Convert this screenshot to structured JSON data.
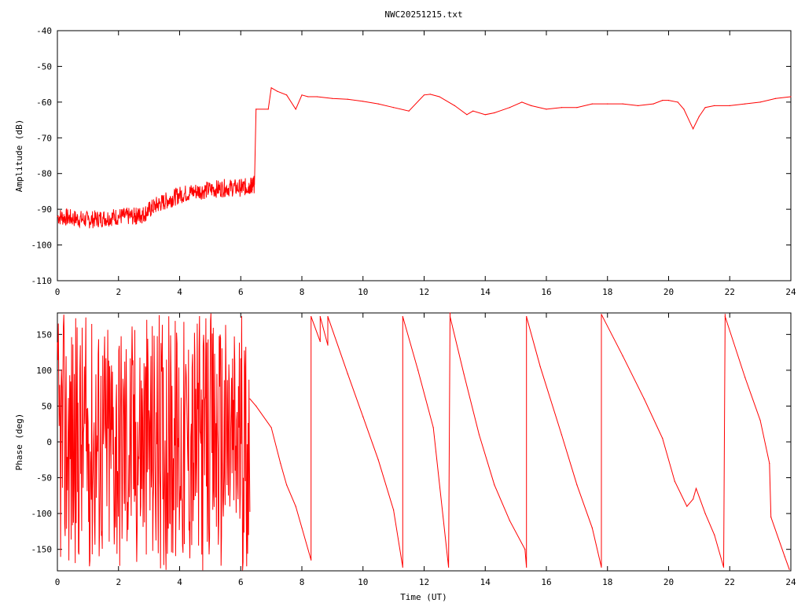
{
  "title": "NWC20251215.txt",
  "chart_data": [
    {
      "type": "line",
      "title": "NWC20251215.txt",
      "xlabel": "",
      "ylabel": "Amplitude (dB)",
      "xlim": [
        0,
        24
      ],
      "ylim": [
        -110,
        -40
      ],
      "x_ticks": [
        "0",
        "2",
        "4",
        "6",
        "8",
        "10",
        "12",
        "14",
        "16",
        "18",
        "20",
        "22",
        "24"
      ],
      "y_ticks": [
        "-40",
        "-50",
        "-60",
        "-70",
        "-80",
        "-90",
        "-100",
        "-110"
      ],
      "color": "#ff0000",
      "series": [
        {
          "x": [
            0,
            0.5,
            1,
            1.5,
            2,
            2.5,
            2.8,
            3.2,
            3.6,
            4,
            4.5,
            5,
            5.5,
            6,
            6.3,
            6.45,
            6.5,
            6.9,
            7.0,
            7.2,
            7.5,
            7.8,
            8.0,
            8.2,
            8.5,
            9,
            9.5,
            10,
            10.5,
            11,
            11.5,
            12,
            12.2,
            12.5,
            13,
            13.4,
            13.6,
            14,
            14.3,
            14.8,
            15.2,
            15.5,
            16,
            16.5,
            17,
            17.5,
            18,
            18.5,
            19,
            19.5,
            19.8,
            20,
            20.3,
            20.5,
            20.8,
            21.0,
            21.2,
            21.5,
            22,
            22.5,
            23,
            23.5,
            24
          ],
          "y": [
            -92,
            -92.5,
            -93,
            -92.5,
            -92,
            -92,
            -91.5,
            -89,
            -87.5,
            -86,
            -85,
            -84.5,
            -84,
            -84,
            -83.5,
            -83,
            -62,
            -62,
            -56,
            -57,
            -58,
            -62,
            -58,
            -58.5,
            -58.5,
            -59,
            -59.2,
            -59.8,
            -60.5,
            -61.5,
            -62.5,
            -58,
            -57.8,
            -58.5,
            -61,
            -63.5,
            -62.5,
            -63.5,
            -63,
            -61.5,
            -60,
            -61,
            -62,
            -61.5,
            -61.5,
            -60.5,
            -60.5,
            -60.5,
            -61,
            -60.5,
            -59.5,
            -59.5,
            -60,
            -62,
            -67.5,
            -64,
            -61.5,
            -61,
            -61,
            -60.5,
            -60,
            -59,
            -58.5
          ]
        }
      ]
    },
    {
      "type": "line",
      "title": "",
      "xlabel": "Time (UT)",
      "ylabel": "Phase (deg)",
      "xlim": [
        0,
        24
      ],
      "ylim": [
        -180,
        180
      ],
      "x_ticks": [
        "0",
        "2",
        "4",
        "6",
        "8",
        "10",
        "12",
        "14",
        "16",
        "18",
        "20",
        "22",
        "24"
      ],
      "y_ticks": [
        "150",
        "100",
        "50",
        "0",
        "-50",
        "-100",
        "-150"
      ],
      "color": "#ff0000",
      "series": [
        {
          "x": [
            6.3,
            6.5,
            7.0,
            7.3,
            7.5,
            7.8,
            8.0,
            8.3,
            8.3,
            8.6,
            8.6,
            8.85,
            8.85,
            9.5,
            10.0,
            10.5,
            11.0,
            11.3,
            11.3,
            11.8,
            12.3,
            12.8,
            12.85,
            12.85,
            13.3,
            13.8,
            14.3,
            14.8,
            15.3,
            15.35,
            15.35,
            15.8,
            16.5,
            17.0,
            17.5,
            17.8,
            17.8,
            18.5,
            19.2,
            19.8,
            20.2,
            20.6,
            20.8,
            20.9,
            21.2,
            21.5,
            21.8,
            21.85,
            21.85,
            22.5,
            23.0,
            23.3,
            23.35,
            23.8,
            23.95
          ],
          "y": [
            60,
            50,
            20,
            -30,
            -60,
            -90,
            -120,
            -165,
            175,
            140,
            175,
            135,
            175,
            95,
            35,
            -25,
            -95,
            -175,
            175,
            100,
            20,
            -175,
            180,
            175,
            95,
            10,
            -60,
            -110,
            -150,
            -175,
            175,
            105,
            10,
            -60,
            -120,
            -175,
            178,
            120,
            60,
            5,
            -55,
            -90,
            -80,
            -65,
            -100,
            -130,
            -175,
            178,
            175,
            90,
            30,
            -30,
            -105,
            -160,
            -178
          ]
        }
      ]
    }
  ]
}
